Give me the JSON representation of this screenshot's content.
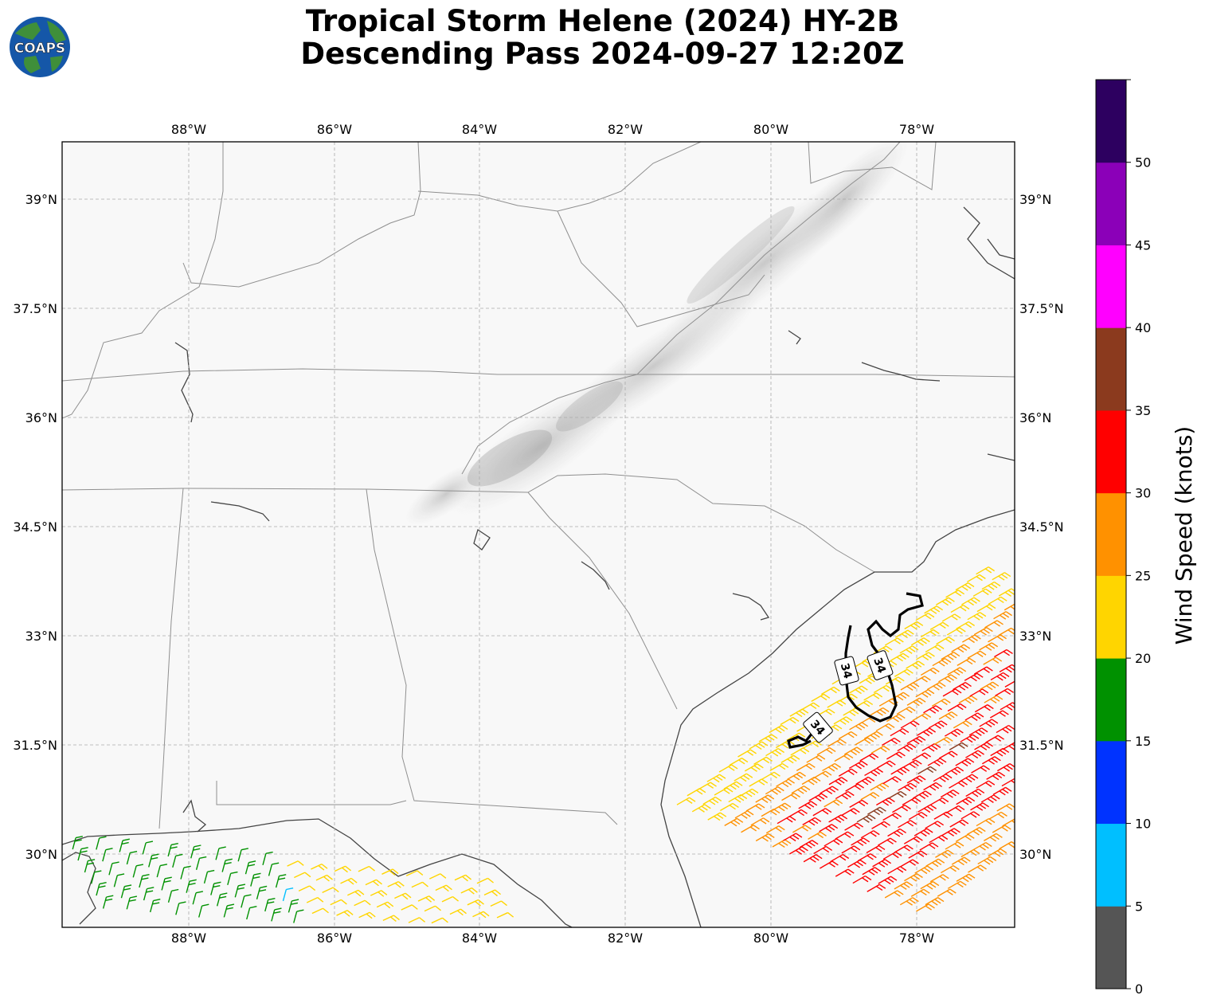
{
  "title": {
    "line1": "Tropical Storm Helene (2024) HY-2B",
    "line2": "Descending Pass 2024-09-27 12:20Z"
  },
  "logo": {
    "text": "COAPS"
  },
  "map": {
    "lon_ticks": [
      "88°W",
      "86°W",
      "84°W",
      "82°W",
      "80°W",
      "78°W"
    ],
    "lat_ticks": [
      "39°N",
      "37.5°N",
      "36°N",
      "34.5°N",
      "33°N",
      "31.5°N",
      "30°N"
    ],
    "gridlines": true,
    "contour_value": "34",
    "contour_labels": [
      "34",
      "34",
      "34"
    ],
    "wind_barb_colors": {
      "blue_light": "#00bfff",
      "green": "#009100",
      "yellow": "#ffd500",
      "orange": "#ff9100",
      "red": "#ff0000",
      "brown": "#8b3a1e"
    }
  },
  "colorbar": {
    "label": "Wind Speed (knots)",
    "ticks": [
      "0",
      "5",
      "10",
      "15",
      "20",
      "25",
      "30",
      "35",
      "40",
      "45",
      "50"
    ],
    "colors": [
      "#555555",
      "#00bfff",
      "#0033ff",
      "#009100",
      "#ffd500",
      "#ff9100",
      "#ff0000",
      "#8b3a1e",
      "#ff00ff",
      "#8b00b8",
      "#2d0060"
    ]
  }
}
